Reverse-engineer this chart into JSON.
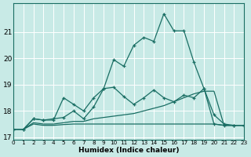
{
  "xlabel": "Humidex (Indice chaleur)",
  "xlim": [
    0,
    23
  ],
  "ylim": [
    16.9,
    22.1
  ],
  "yticks": [
    17,
    18,
    19,
    20,
    21
  ],
  "xticks": [
    0,
    1,
    2,
    3,
    4,
    5,
    6,
    7,
    8,
    9,
    10,
    11,
    12,
    13,
    14,
    15,
    16,
    17,
    18,
    19,
    20,
    21,
    22,
    23
  ],
  "bg_color": "#c8eae6",
  "line_color": "#1a6e64",
  "grid_color": "#ffffff",
  "line1_x": [
    0,
    1,
    2,
    3,
    4,
    5,
    6,
    7,
    8,
    9,
    10,
    11,
    12,
    13,
    14,
    15,
    16,
    17,
    18,
    19,
    20,
    21,
    22,
    23
  ],
  "line1_y": [
    17.3,
    17.3,
    17.7,
    17.65,
    17.65,
    18.5,
    18.25,
    18.0,
    18.5,
    18.85,
    19.95,
    19.7,
    20.5,
    20.8,
    20.65,
    21.7,
    21.05,
    21.05,
    19.85,
    18.85,
    17.85,
    17.5,
    17.45,
    17.45
  ],
  "line2_x": [
    0,
    1,
    2,
    3,
    4,
    5,
    6,
    7,
    8,
    9,
    10,
    11,
    12,
    13,
    14,
    15,
    16,
    17,
    18,
    19,
    20,
    21,
    22,
    23
  ],
  "line2_y": [
    17.3,
    17.3,
    17.7,
    17.65,
    17.7,
    17.75,
    18.0,
    17.7,
    18.15,
    18.85,
    18.9,
    18.55,
    18.25,
    18.5,
    18.8,
    18.5,
    18.35,
    18.6,
    18.5,
    18.85,
    17.5,
    17.45,
    17.45,
    17.45
  ],
  "line3_x": [
    0,
    1,
    2,
    3,
    4,
    5,
    6,
    7,
    8,
    9,
    10,
    11,
    12,
    13,
    14,
    15,
    16,
    17,
    18,
    19,
    20,
    21,
    22,
    23
  ],
  "line3_y": [
    17.3,
    17.3,
    17.55,
    17.5,
    17.5,
    17.55,
    17.6,
    17.6,
    17.7,
    17.75,
    17.8,
    17.85,
    17.9,
    18.0,
    18.1,
    18.2,
    18.35,
    18.5,
    18.65,
    18.75,
    18.75,
    17.45,
    17.45,
    17.45
  ],
  "line4_x": [
    0,
    1,
    2,
    3,
    4,
    5,
    6,
    7,
    8,
    9,
    10,
    11,
    12,
    13,
    14,
    15,
    16,
    17,
    18,
    19,
    20,
    21,
    22,
    23
  ],
  "line4_y": [
    17.3,
    17.3,
    17.5,
    17.45,
    17.45,
    17.48,
    17.5,
    17.5,
    17.5,
    17.5,
    17.5,
    17.5,
    17.5,
    17.5,
    17.5,
    17.5,
    17.5,
    17.5,
    17.5,
    17.5,
    17.5,
    17.45,
    17.45,
    17.45
  ]
}
